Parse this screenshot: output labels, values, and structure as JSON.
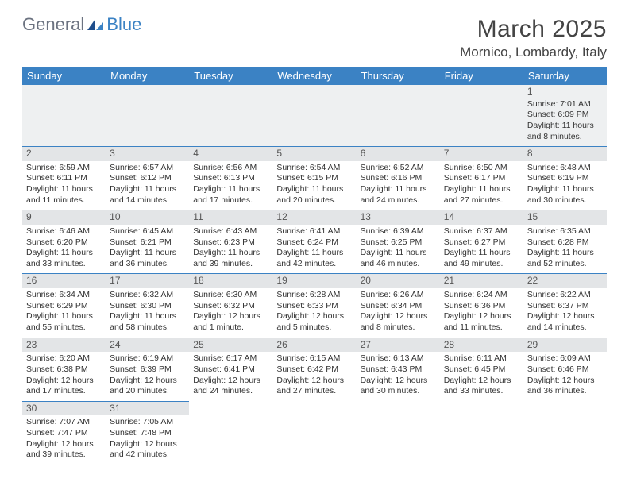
{
  "logo": {
    "text1": "General",
    "text2": "Blue"
  },
  "title": "March 2025",
  "location": "Mornico, Lombardy, Italy",
  "colors": {
    "header_bg": "#3b82c4",
    "header_text": "#ffffff",
    "daynum_bg": "#e3e5e7",
    "border": "#3b82c4",
    "row1_bg": "#eef0f1",
    "text": "#333333",
    "logo_gray": "#6b7280",
    "logo_blue": "#3b82c4"
  },
  "fonts": {
    "title_pt": 30,
    "location_pt": 17,
    "dayhead_pt": 13,
    "daynum_pt": 12,
    "body_pt": 10.5
  },
  "day_headers": [
    "Sunday",
    "Monday",
    "Tuesday",
    "Wednesday",
    "Thursday",
    "Friday",
    "Saturday"
  ],
  "weeks": [
    [
      null,
      null,
      null,
      null,
      null,
      null,
      {
        "n": "1",
        "sunrise": "Sunrise: 7:01 AM",
        "sunset": "Sunset: 6:09 PM",
        "daylight": "Daylight: 11 hours and 8 minutes."
      }
    ],
    [
      {
        "n": "2",
        "sunrise": "Sunrise: 6:59 AM",
        "sunset": "Sunset: 6:11 PM",
        "daylight": "Daylight: 11 hours and 11 minutes."
      },
      {
        "n": "3",
        "sunrise": "Sunrise: 6:57 AM",
        "sunset": "Sunset: 6:12 PM",
        "daylight": "Daylight: 11 hours and 14 minutes."
      },
      {
        "n": "4",
        "sunrise": "Sunrise: 6:56 AM",
        "sunset": "Sunset: 6:13 PM",
        "daylight": "Daylight: 11 hours and 17 minutes."
      },
      {
        "n": "5",
        "sunrise": "Sunrise: 6:54 AM",
        "sunset": "Sunset: 6:15 PM",
        "daylight": "Daylight: 11 hours and 20 minutes."
      },
      {
        "n": "6",
        "sunrise": "Sunrise: 6:52 AM",
        "sunset": "Sunset: 6:16 PM",
        "daylight": "Daylight: 11 hours and 24 minutes."
      },
      {
        "n": "7",
        "sunrise": "Sunrise: 6:50 AM",
        "sunset": "Sunset: 6:17 PM",
        "daylight": "Daylight: 11 hours and 27 minutes."
      },
      {
        "n": "8",
        "sunrise": "Sunrise: 6:48 AM",
        "sunset": "Sunset: 6:19 PM",
        "daylight": "Daylight: 11 hours and 30 minutes."
      }
    ],
    [
      {
        "n": "9",
        "sunrise": "Sunrise: 6:46 AM",
        "sunset": "Sunset: 6:20 PM",
        "daylight": "Daylight: 11 hours and 33 minutes."
      },
      {
        "n": "10",
        "sunrise": "Sunrise: 6:45 AM",
        "sunset": "Sunset: 6:21 PM",
        "daylight": "Daylight: 11 hours and 36 minutes."
      },
      {
        "n": "11",
        "sunrise": "Sunrise: 6:43 AM",
        "sunset": "Sunset: 6:23 PM",
        "daylight": "Daylight: 11 hours and 39 minutes."
      },
      {
        "n": "12",
        "sunrise": "Sunrise: 6:41 AM",
        "sunset": "Sunset: 6:24 PM",
        "daylight": "Daylight: 11 hours and 42 minutes."
      },
      {
        "n": "13",
        "sunrise": "Sunrise: 6:39 AM",
        "sunset": "Sunset: 6:25 PM",
        "daylight": "Daylight: 11 hours and 46 minutes."
      },
      {
        "n": "14",
        "sunrise": "Sunrise: 6:37 AM",
        "sunset": "Sunset: 6:27 PM",
        "daylight": "Daylight: 11 hours and 49 minutes."
      },
      {
        "n": "15",
        "sunrise": "Sunrise: 6:35 AM",
        "sunset": "Sunset: 6:28 PM",
        "daylight": "Daylight: 11 hours and 52 minutes."
      }
    ],
    [
      {
        "n": "16",
        "sunrise": "Sunrise: 6:34 AM",
        "sunset": "Sunset: 6:29 PM",
        "daylight": "Daylight: 11 hours and 55 minutes."
      },
      {
        "n": "17",
        "sunrise": "Sunrise: 6:32 AM",
        "sunset": "Sunset: 6:30 PM",
        "daylight": "Daylight: 11 hours and 58 minutes."
      },
      {
        "n": "18",
        "sunrise": "Sunrise: 6:30 AM",
        "sunset": "Sunset: 6:32 PM",
        "daylight": "Daylight: 12 hours and 1 minute."
      },
      {
        "n": "19",
        "sunrise": "Sunrise: 6:28 AM",
        "sunset": "Sunset: 6:33 PM",
        "daylight": "Daylight: 12 hours and 5 minutes."
      },
      {
        "n": "20",
        "sunrise": "Sunrise: 6:26 AM",
        "sunset": "Sunset: 6:34 PM",
        "daylight": "Daylight: 12 hours and 8 minutes."
      },
      {
        "n": "21",
        "sunrise": "Sunrise: 6:24 AM",
        "sunset": "Sunset: 6:36 PM",
        "daylight": "Daylight: 12 hours and 11 minutes."
      },
      {
        "n": "22",
        "sunrise": "Sunrise: 6:22 AM",
        "sunset": "Sunset: 6:37 PM",
        "daylight": "Daylight: 12 hours and 14 minutes."
      }
    ],
    [
      {
        "n": "23",
        "sunrise": "Sunrise: 6:20 AM",
        "sunset": "Sunset: 6:38 PM",
        "daylight": "Daylight: 12 hours and 17 minutes."
      },
      {
        "n": "24",
        "sunrise": "Sunrise: 6:19 AM",
        "sunset": "Sunset: 6:39 PM",
        "daylight": "Daylight: 12 hours and 20 minutes."
      },
      {
        "n": "25",
        "sunrise": "Sunrise: 6:17 AM",
        "sunset": "Sunset: 6:41 PM",
        "daylight": "Daylight: 12 hours and 24 minutes."
      },
      {
        "n": "26",
        "sunrise": "Sunrise: 6:15 AM",
        "sunset": "Sunset: 6:42 PM",
        "daylight": "Daylight: 12 hours and 27 minutes."
      },
      {
        "n": "27",
        "sunrise": "Sunrise: 6:13 AM",
        "sunset": "Sunset: 6:43 PM",
        "daylight": "Daylight: 12 hours and 30 minutes."
      },
      {
        "n": "28",
        "sunrise": "Sunrise: 6:11 AM",
        "sunset": "Sunset: 6:45 PM",
        "daylight": "Daylight: 12 hours and 33 minutes."
      },
      {
        "n": "29",
        "sunrise": "Sunrise: 6:09 AM",
        "sunset": "Sunset: 6:46 PM",
        "daylight": "Daylight: 12 hours and 36 minutes."
      }
    ],
    [
      {
        "n": "30",
        "sunrise": "Sunrise: 7:07 AM",
        "sunset": "Sunset: 7:47 PM",
        "daylight": "Daylight: 12 hours and 39 minutes."
      },
      {
        "n": "31",
        "sunrise": "Sunrise: 7:05 AM",
        "sunset": "Sunset: 7:48 PM",
        "daylight": "Daylight: 12 hours and 42 minutes."
      },
      null,
      null,
      null,
      null,
      null
    ]
  ]
}
